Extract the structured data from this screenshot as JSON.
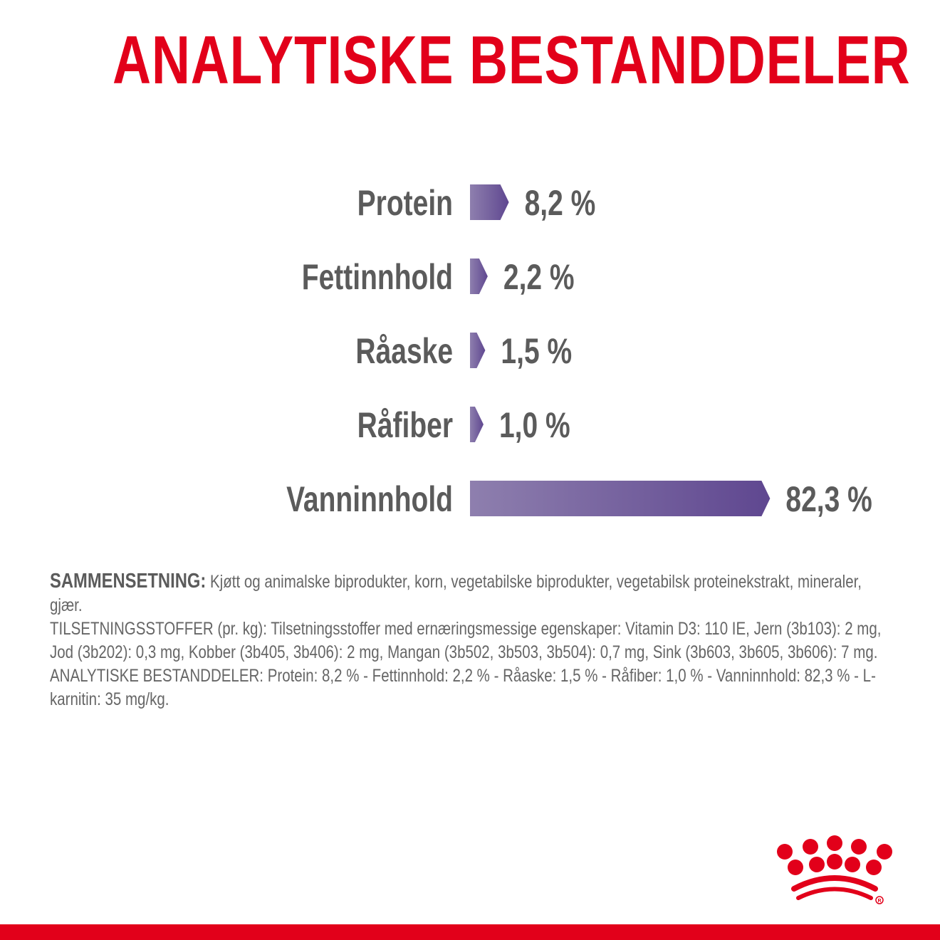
{
  "title": "ANALYTISKE BESTANDDELER",
  "chart_data": {
    "type": "bar",
    "orientation": "horizontal",
    "categories": [
      "Protein",
      "Fettinnhold",
      "Råaske",
      "Råfiber",
      "Vanninnhold"
    ],
    "values": [
      8.2,
      2.2,
      1.5,
      1.0,
      82.3
    ],
    "value_labels": [
      "8,2 %",
      "2,2 %",
      "1,5 %",
      "1,0 %",
      "82,3 %"
    ],
    "unit": "%",
    "grid": false,
    "bar_gradient": [
      "#8e7fae",
      "#5f4790"
    ]
  },
  "composition": {
    "heading": "SAMMENSETNING:",
    "text": " Kjøtt og animalske biprodukter, korn, vegetabilske biprodukter, vegetabilsk proteinekstrakt, mineraler, gjær.",
    "additives": "TILSETNINGSSTOFFER (pr. kg): Tilsetningsstoffer med ernæringsmessige egenskaper: Vitamin D3: 110 IE, Jern (3b103): 2 mg, Jod (3b202): 0,3 mg, Kobber (3b405, 3b406): 2 mg, Mangan (3b502, 3b503, 3b504): 0,7 mg, Sink (3b603, 3b605, 3b606): 7 mg.",
    "analytical": "ANALYTISKE BESTANDDELER: Protein: 8,2 % - Fettinnhold: 2,2 % - Råaske: 1,5 % - Råfiber: 1,0 % - Vanninnhold: 82,3 % - L-karnitin: 35 mg/kg."
  },
  "brand": {
    "logo": "royal-canin-crown-logo",
    "color": "#e2001a"
  }
}
